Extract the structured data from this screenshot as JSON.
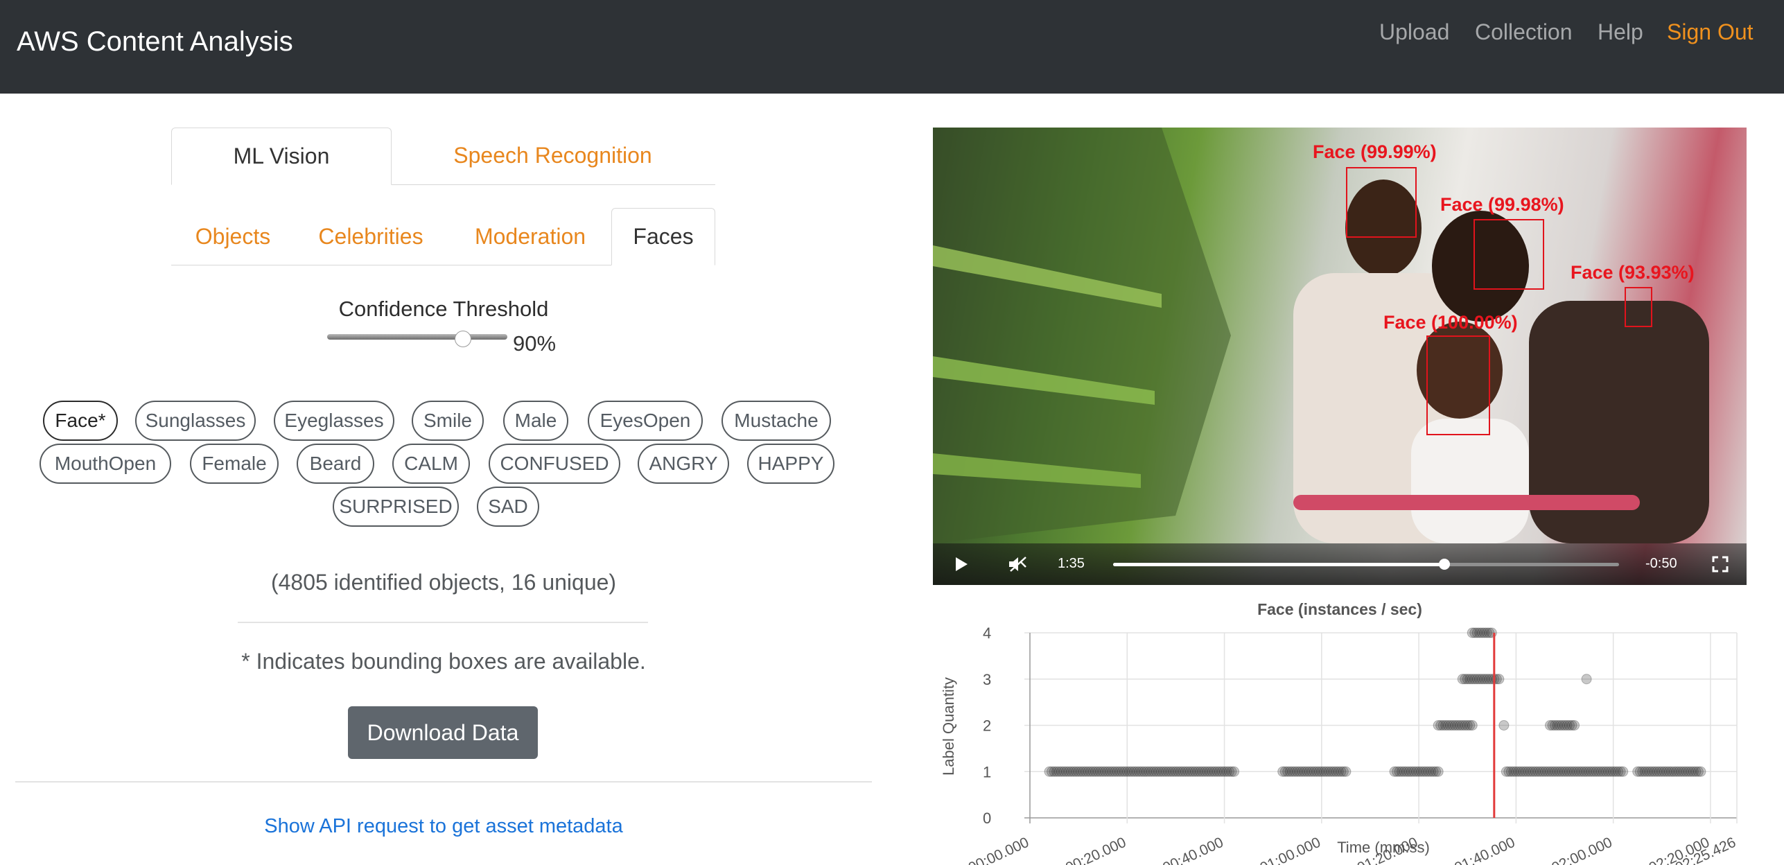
{
  "navbar": {
    "brand": "AWS Content Analysis",
    "links": [
      "Upload",
      "Collection",
      "Help"
    ],
    "sign_out": "Sign Out",
    "accent_color": "#f0911e"
  },
  "main_tabs": {
    "ml_vision": "ML Vision",
    "speech": "Speech Recognition"
  },
  "sub_tabs": {
    "objects": "Objects",
    "celebrities": "Celebrities",
    "moderation": "Moderation",
    "faces": "Faces"
  },
  "threshold": {
    "label": "Confidence Threshold",
    "value_label": "90%",
    "value": 90
  },
  "chips": [
    "Face*",
    "Sunglasses",
    "Eyeglasses",
    "Smile",
    "Male",
    "EyesOpen",
    "Mustache",
    "MouthOpen",
    "Female",
    "Beard",
    "CALM",
    "CONFUSED",
    "ANGRY",
    "HAPPY",
    "SURPRISED",
    "SAD"
  ],
  "summary": "(4805 identified objects, 16 unique)",
  "note": "* Indicates bounding boxes are available.",
  "download_label": "Download Data",
  "api_link": "Show API request to get asset metadata",
  "video": {
    "current_time": "1:35",
    "remaining": "-0:50",
    "progress": 0.655,
    "faces": [
      {
        "label": "Face (99.99%)"
      },
      {
        "label": "Face (99.98%)"
      },
      {
        "label": "Face (93.93%)"
      },
      {
        "label": "Face (100.00%)"
      }
    ],
    "box_color": "#e1131c"
  },
  "chart_data": {
    "type": "scatter",
    "title": "Face (instances / sec)",
    "xlabel": "Time (mm:ss)",
    "ylabel": "Label Quantity",
    "xlim": [
      0,
      145.426
    ],
    "ylim": [
      0,
      4
    ],
    "y_ticks": [
      "0",
      "1",
      "2",
      "3",
      "4"
    ],
    "x_ticks": [
      {
        "value": 0,
        "label": "00:00.000"
      },
      {
        "value": 20,
        "label": "00:20.000"
      },
      {
        "value": 40,
        "label": "00:40.000"
      },
      {
        "value": 60,
        "label": "01:00.000"
      },
      {
        "value": 80,
        "label": "01:20.000"
      },
      {
        "value": 100,
        "label": "01:40.000"
      },
      {
        "value": 120,
        "label": "02:00.000"
      },
      {
        "value": 140,
        "label": "02:20.000"
      },
      {
        "value": 145.426,
        "label": "02:25.426"
      }
    ],
    "current_time": 95.5,
    "marker_color": "#e23b3b",
    "segments": [
      {
        "start": 4,
        "end": 42,
        "y": 1
      },
      {
        "start": 52,
        "end": 65,
        "y": 1
      },
      {
        "start": 75,
        "end": 84,
        "y": 1
      },
      {
        "start": 84,
        "end": 91,
        "y": 2
      },
      {
        "start": 89,
        "end": 96,
        "y": 3
      },
      {
        "start": 91,
        "end": 95,
        "y": 4
      },
      {
        "start": 98,
        "end": 122,
        "y": 1
      },
      {
        "start": 107,
        "end": 112,
        "y": 2
      },
      {
        "start": 125,
        "end": 138,
        "y": 1
      }
    ],
    "points": [
      {
        "x": 97.5,
        "y": 2
      },
      {
        "x": 114.5,
        "y": 3
      },
      {
        "x": 96.5,
        "y": 3
      }
    ]
  }
}
